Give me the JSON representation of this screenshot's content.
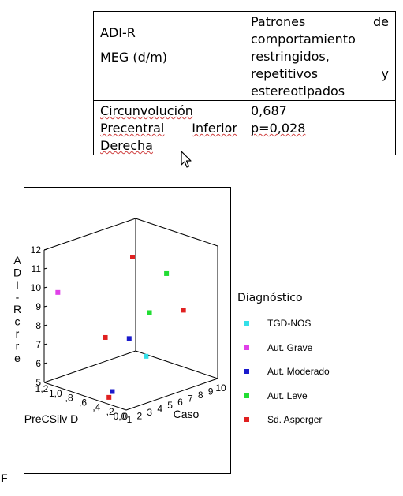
{
  "table": {
    "row1_col1_line1": "ADI-R",
    "row1_col1_line2": "MEG (d/m)",
    "row1_col2_lines": [
      [
        "Patrones",
        "de"
      ],
      [
        "comportamiento"
      ],
      [
        "restringidos,"
      ],
      [
        "repetitivos",
        "y"
      ],
      [
        "estereotipados"
      ]
    ],
    "row2_col1_lines": [
      [
        "Circunvolución"
      ],
      [
        "Precentral",
        "Inferior"
      ],
      [
        "Derecha"
      ]
    ],
    "row2_col2_line1": "0,687",
    "row2_col2_line2": "p=0,028"
  },
  "panel_letter": "F",
  "chart_data": {
    "type": "scatter",
    "projection": "3d",
    "title": "",
    "axes": {
      "z_label_chars": [
        "A",
        "D",
        "I",
        "-",
        "R",
        "c",
        "r",
        "r",
        "e"
      ],
      "x_label": "PreCSilv D",
      "y_label": "Caso",
      "z_ticks": [
        "12",
        "11",
        "10",
        "9",
        "8",
        "7",
        "6",
        "5"
      ],
      "x_ticks": [
        "1,2",
        "1,0",
        ",8",
        ",6",
        ",4",
        ",2",
        ",0",
        "0,0"
      ],
      "y_ticks": [
        "1",
        "2",
        "3",
        "4",
        "5",
        "6",
        "7",
        "8",
        "9",
        "10"
      ],
      "zlim": [
        5,
        12
      ],
      "ylim": [
        1,
        10
      ],
      "xlim": [
        0,
        1.2
      ],
      "grid": false
    },
    "legend": {
      "title": "Diagnóstico",
      "placement": "right"
    },
    "series": [
      {
        "name": "TGD-NOS",
        "color": "#33e0e8",
        "points": [
          {
            "caso": 7,
            "precsilv": 0.6,
            "adir": 6
          }
        ]
      },
      {
        "name": "Aut. Grave",
        "color": "#e040e8",
        "points": [
          {
            "caso": 1,
            "precsilv": 1.0,
            "adir": 10
          }
        ]
      },
      {
        "name": "Aut. Moderado",
        "color": "#1a1acc",
        "points": [
          {
            "caso": 3,
            "precsilv": 0.5,
            "adir": 5
          },
          {
            "caso": 6,
            "precsilv": 0.7,
            "adir": 7
          }
        ]
      },
      {
        "name": "Aut. Leve",
        "color": "#22dd33",
        "points": [
          {
            "caso": 9,
            "precsilv": 0.6,
            "adir": 10
          },
          {
            "caso": 8,
            "precsilv": 0.7,
            "adir": 8
          }
        ]
      },
      {
        "name": "Sd. Asperger",
        "color": "#e02020",
        "points": [
          {
            "caso": 2,
            "precsilv": 0.4,
            "adir": 5
          },
          {
            "caso": 5,
            "precsilv": 0.9,
            "adir": 7
          },
          {
            "caso": 10,
            "precsilv": 0.5,
            "adir": 8
          },
          {
            "caso": 7,
            "precsilv": 0.8,
            "adir": 11
          }
        ]
      }
    ]
  }
}
